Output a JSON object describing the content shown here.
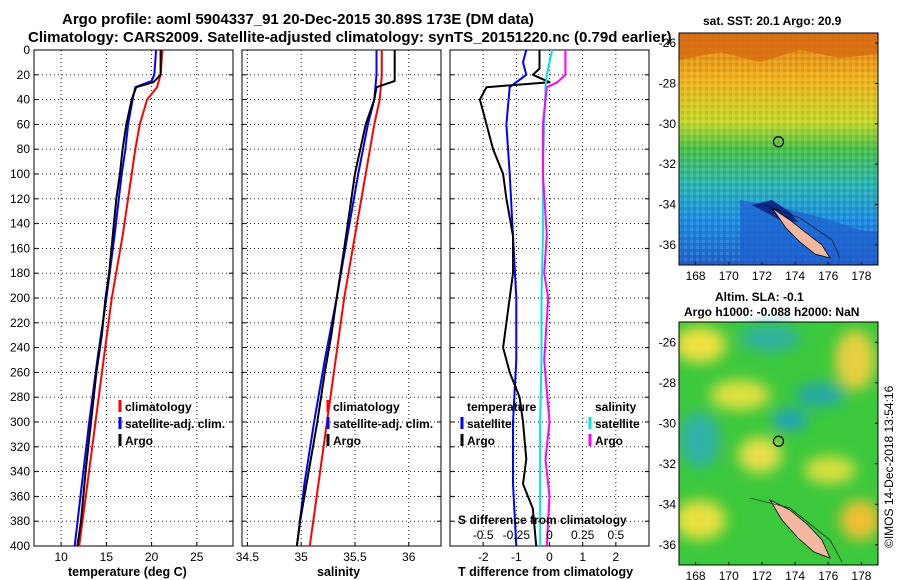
{
  "title": {
    "line1": "Argo profile: aoml 5904337_91 20-Dec-2015 30.89S 173E (DM data)",
    "line2": "Climatology: CARS2009. Satellite-adjusted climatology: synTS_20151220.nc (0.79d earlier)"
  },
  "credit": "©IMOS 14-Dec-2018 13:54:16",
  "colors": {
    "climatology": "#ff0000",
    "satellite": "#0000ff",
    "argo": "#000000",
    "sal_satellite": "#00e5e5",
    "sal_argo": "#ff00ff"
  },
  "depth_axis": {
    "ticks": [
      0,
      20,
      40,
      60,
      80,
      100,
      120,
      140,
      160,
      180,
      200,
      220,
      240,
      260,
      280,
      300,
      320,
      340,
      360,
      380,
      400
    ],
    "range": [
      0,
      400
    ]
  },
  "chart_data": [
    {
      "type": "line",
      "name": "temperature",
      "xlabel": "temperature (deg C)",
      "xlim": [
        7,
        29
      ],
      "xticks": [
        10,
        15,
        20,
        25
      ],
      "ylim": [
        400,
        0
      ],
      "legend": [
        "climatology",
        "satellite-adj. clim.",
        "Argo"
      ],
      "series": [
        {
          "name": "climatology",
          "color": "#ff0000",
          "depth": [
            0,
            20,
            30,
            40,
            60,
            80,
            100,
            150,
            200,
            250,
            300,
            350,
            400
          ],
          "values": [
            21.2,
            21.0,
            20.6,
            19.5,
            18.7,
            18.2,
            17.8,
            16.8,
            15.6,
            14.7,
            13.8,
            12.9,
            12.0
          ]
        },
        {
          "name": "satellite-adj. clim.",
          "color": "#0000ff",
          "depth": [
            0,
            20,
            25,
            30,
            40,
            60,
            80,
            100,
            150,
            200,
            250,
            300,
            350,
            400
          ],
          "values": [
            20.5,
            20.3,
            20.0,
            18.2,
            17.9,
            17.4,
            17.1,
            16.7,
            15.9,
            15.0,
            14.0,
            13.1,
            12.3,
            11.5
          ]
        },
        {
          "name": "Argo",
          "color": "#000000",
          "depth": [
            0,
            20,
            26,
            30,
            40,
            60,
            80,
            100,
            120,
            150,
            180,
            200,
            230,
            260,
            300,
            340,
            380,
            400
          ],
          "values": [
            21.0,
            21.0,
            20.2,
            18.3,
            17.8,
            17.2,
            16.8,
            16.5,
            16.1,
            15.7,
            15.3,
            14.9,
            14.5,
            13.9,
            13.3,
            12.7,
            12.2,
            11.8
          ]
        }
      ]
    },
    {
      "type": "line",
      "name": "salinity",
      "xlabel": "salinity",
      "xlim": [
        34.45,
        36.3
      ],
      "xticks": [
        34.5,
        35,
        35.5,
        36
      ],
      "ylim": [
        400,
        0
      ],
      "legend": [
        "climatology",
        "satellite-adj. clim.",
        "Argo"
      ],
      "series": [
        {
          "name": "climatology",
          "color": "#ff0000",
          "depth": [
            0,
            20,
            30,
            40,
            60,
            100,
            150,
            200,
            250,
            300,
            350,
            400
          ],
          "values": [
            35.75,
            35.75,
            35.74,
            35.73,
            35.68,
            35.6,
            35.5,
            35.4,
            35.32,
            35.24,
            35.16,
            35.08
          ]
        },
        {
          "name": "satellite-adj. clim.",
          "color": "#0000ff",
          "depth": [
            0,
            20,
            30,
            40,
            60,
            100,
            150,
            200,
            250,
            300,
            350,
            400
          ],
          "values": [
            35.7,
            35.7,
            35.69,
            35.68,
            35.62,
            35.53,
            35.43,
            35.33,
            35.22,
            35.12,
            35.03,
            34.96
          ]
        },
        {
          "name": "Argo",
          "color": "#000000",
          "depth": [
            0,
            25,
            30,
            40,
            60,
            80,
            100,
            130,
            160,
            200,
            230,
            260,
            300,
            340,
            380,
            400
          ],
          "values": [
            35.87,
            35.87,
            35.7,
            35.68,
            35.6,
            35.55,
            35.5,
            35.45,
            35.4,
            35.33,
            35.28,
            35.22,
            35.15,
            35.07,
            34.99,
            34.96
          ]
        }
      ]
    },
    {
      "type": "line",
      "name": "difference",
      "xlabel": "T difference from climatology",
      "top_axis_label": "S difference from climatology",
      "xlim": [
        -3,
        3
      ],
      "xticks": [
        -2,
        -1,
        0,
        1,
        2
      ],
      "top_xticks_labels": [
        "-0.5",
        "-0.25",
        "0",
        "0.25",
        "0.5"
      ],
      "ylim": [
        400,
        0
      ],
      "legend_title_t": "temperature",
      "legend_title_s": "salinity",
      "legend": [
        "satellite",
        "Argo",
        "satellite",
        "Argo"
      ],
      "series": [
        {
          "name": "T satellite",
          "color": "#0000ff",
          "depth": [
            0,
            10,
            20,
            26,
            30,
            60,
            100,
            150,
            200,
            250,
            300,
            350,
            400
          ],
          "values": [
            -0.7,
            -0.8,
            -0.7,
            -1.0,
            -1.2,
            -1.3,
            -1.2,
            -1.1,
            -1.0,
            -1.0,
            -1.1,
            -1.1,
            -1.0
          ]
        },
        {
          "name": "T Argo",
          "color": "#000000",
          "depth": [
            0,
            15,
            20,
            26,
            30,
            40,
            60,
            80,
            100,
            120,
            150,
            180,
            200,
            220,
            240,
            260,
            280,
            300,
            330,
            350,
            370,
            400
          ],
          "values": [
            -0.3,
            -0.3,
            -0.5,
            0.0,
            -1.9,
            -2.1,
            -1.9,
            -1.7,
            -1.4,
            -1.3,
            -1.1,
            -1.1,
            -1.2,
            -1.3,
            -1.4,
            -1.2,
            -0.9,
            -0.8,
            -0.7,
            -0.8,
            -0.5,
            -0.4
          ]
        },
        {
          "name": "S satellite",
          "color": "#00e5e5",
          "depth": [
            0,
            10,
            20,
            30,
            60,
            100,
            150,
            200,
            250,
            300,
            350,
            400
          ],
          "values": [
            0.02,
            0.0,
            -0.02,
            -0.03,
            -0.04,
            -0.05,
            -0.05,
            -0.06,
            -0.06,
            -0.07,
            -0.07,
            -0.07
          ]
        },
        {
          "name": "S Argo",
          "color": "#ff00ff",
          "depth": [
            0,
            20,
            26,
            30,
            60,
            100,
            150,
            180,
            200,
            250,
            300,
            330,
            360,
            400
          ],
          "values": [
            0.12,
            0.12,
            0.06,
            -0.02,
            -0.05,
            -0.05,
            -0.02,
            -0.04,
            -0.01,
            -0.04,
            0.0,
            -0.03,
            0.0,
            -0.02
          ]
        }
      ]
    },
    {
      "type": "heatmap",
      "name": "sst-map",
      "title": "sat. SST: 20.1 Argo: 20.9",
      "xticks": [
        168,
        170,
        172,
        174,
        176,
        178
      ],
      "yticks": [
        -26,
        -28,
        -30,
        -32,
        -34,
        -36
      ],
      "xlim": [
        167,
        179
      ],
      "ylim": [
        -37,
        -25.5
      ],
      "marker": {
        "lon": 173,
        "lat": -30.89
      }
    },
    {
      "type": "heatmap",
      "name": "sla-map",
      "title": "Altim. SLA: -0.1",
      "subtitle": "Argo h1000: -0.088 h2000: NaN",
      "xticks": [
        168,
        170,
        172,
        174,
        176,
        178
      ],
      "yticks": [
        -26,
        -28,
        -30,
        -32,
        -34,
        -36
      ],
      "xlim": [
        167,
        179
      ],
      "ylim": [
        -37,
        -25
      ],
      "marker": {
        "lon": 173,
        "lat": -30.89
      }
    }
  ]
}
